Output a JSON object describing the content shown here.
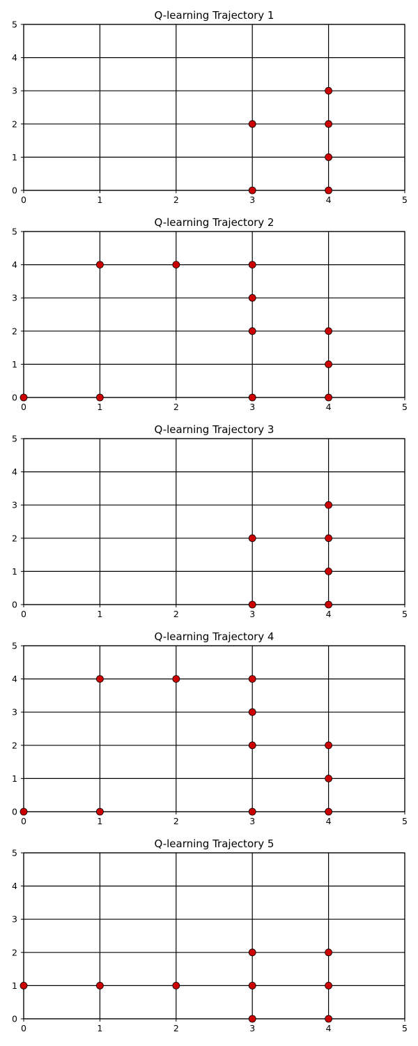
{
  "chart_data": [
    {
      "type": "scatter",
      "title": "Q-learning Trajectory 1",
      "xlabel": "",
      "ylabel": "",
      "xlim": [
        0,
        5
      ],
      "ylim": [
        0,
        5
      ],
      "xticks": [
        "0",
        "1",
        "2",
        "3",
        "4",
        "5"
      ],
      "yticks": [
        "0",
        "1",
        "2",
        "3",
        "4",
        "5"
      ],
      "grid": true,
      "marker_color": "#cc0000",
      "points": [
        [
          3,
          0
        ],
        [
          3,
          2
        ],
        [
          4,
          0
        ],
        [
          4,
          1
        ],
        [
          4,
          2
        ],
        [
          4,
          3
        ]
      ]
    },
    {
      "type": "scatter",
      "title": "Q-learning Trajectory 2",
      "xlabel": "",
      "ylabel": "",
      "xlim": [
        0,
        5
      ],
      "ylim": [
        0,
        5
      ],
      "xticks": [
        "0",
        "1",
        "2",
        "3",
        "4",
        "5"
      ],
      "yticks": [
        "0",
        "1",
        "2",
        "3",
        "4",
        "5"
      ],
      "grid": true,
      "marker_color": "#cc0000",
      "points": [
        [
          0,
          0
        ],
        [
          1,
          0
        ],
        [
          1,
          4
        ],
        [
          2,
          4
        ],
        [
          3,
          0
        ],
        [
          3,
          2
        ],
        [
          3,
          3
        ],
        [
          3,
          4
        ],
        [
          4,
          0
        ],
        [
          4,
          1
        ],
        [
          4,
          2
        ]
      ]
    },
    {
      "type": "scatter",
      "title": "Q-learning Trajectory 3",
      "xlabel": "",
      "ylabel": "",
      "xlim": [
        0,
        5
      ],
      "ylim": [
        0,
        5
      ],
      "xticks": [
        "0",
        "1",
        "2",
        "3",
        "4",
        "5"
      ],
      "yticks": [
        "0",
        "1",
        "2",
        "3",
        "4",
        "5"
      ],
      "grid": true,
      "marker_color": "#cc0000",
      "points": [
        [
          3,
          0
        ],
        [
          3,
          2
        ],
        [
          4,
          0
        ],
        [
          4,
          1
        ],
        [
          4,
          2
        ],
        [
          4,
          3
        ]
      ]
    },
    {
      "type": "scatter",
      "title": "Q-learning Trajectory 4",
      "xlabel": "",
      "ylabel": "",
      "xlim": [
        0,
        5
      ],
      "ylim": [
        0,
        5
      ],
      "xticks": [
        "0",
        "1",
        "2",
        "3",
        "4",
        "5"
      ],
      "yticks": [
        "0",
        "1",
        "2",
        "3",
        "4",
        "5"
      ],
      "grid": true,
      "marker_color": "#cc0000",
      "points": [
        [
          0,
          0
        ],
        [
          1,
          0
        ],
        [
          1,
          4
        ],
        [
          2,
          4
        ],
        [
          3,
          0
        ],
        [
          3,
          2
        ],
        [
          3,
          3
        ],
        [
          3,
          4
        ],
        [
          4,
          0
        ],
        [
          4,
          1
        ],
        [
          4,
          2
        ]
      ]
    },
    {
      "type": "scatter",
      "title": "Q-learning Trajectory 5",
      "xlabel": "",
      "ylabel": "",
      "xlim": [
        0,
        5
      ],
      "ylim": [
        0,
        5
      ],
      "xticks": [
        "0",
        "1",
        "2",
        "3",
        "4",
        "5"
      ],
      "yticks": [
        "0",
        "1",
        "2",
        "3",
        "4",
        "5"
      ],
      "grid": true,
      "marker_color": "#cc0000",
      "points": [
        [
          0,
          1
        ],
        [
          1,
          1
        ],
        [
          2,
          1
        ],
        [
          3,
          0
        ],
        [
          3,
          1
        ],
        [
          3,
          2
        ],
        [
          4,
          0
        ],
        [
          4,
          1
        ],
        [
          4,
          2
        ]
      ]
    }
  ]
}
